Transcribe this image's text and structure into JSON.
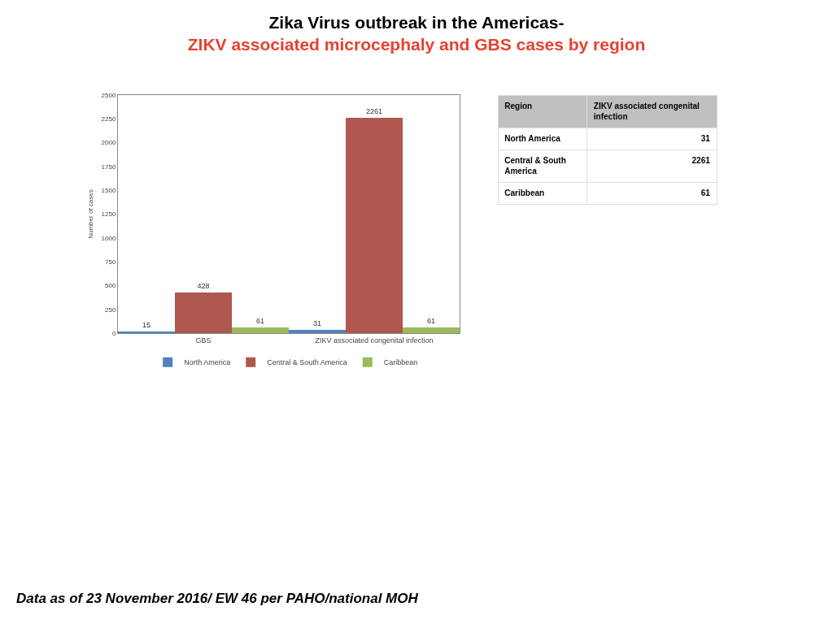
{
  "chart_data": [
    {
      "type": "bar",
      "title": "Zika Virus outbreak in the Americas-",
      "subtitle": "ZIKV associated microcephaly and GBS cases by region",
      "categories": [
        "GBS",
        "ZIKV associated congenital infection"
      ],
      "series": [
        {
          "name": "North America",
          "color": "#4f81bd",
          "values": [
            15,
            31
          ]
        },
        {
          "name": "Central & South America",
          "color": "#b0574f",
          "values": [
            428,
            2261
          ]
        },
        {
          "name": "Caribbean",
          "color": "#9bbb59",
          "values": [
            61,
            61
          ]
        }
      ],
      "ylabel": "Number of cases",
      "ylim": [
        0,
        2500
      ],
      "yticks": [
        0,
        250,
        500,
        750,
        1000,
        1250,
        1500,
        1750,
        2000,
        2250,
        2500
      ],
      "legend": "bottom",
      "data_labels": true,
      "annotations": [
        "Data as of 23 November 2016/ EW 46 per PAHO/national MOH"
      ]
    },
    {
      "type": "other",
      "annotations": [
        "Region",
        "ZIKV associated congenital infection",
        "North America",
        "31",
        "Central & South America",
        "2261",
        "Caribbean",
        "61"
      ]
    }
  ]
}
